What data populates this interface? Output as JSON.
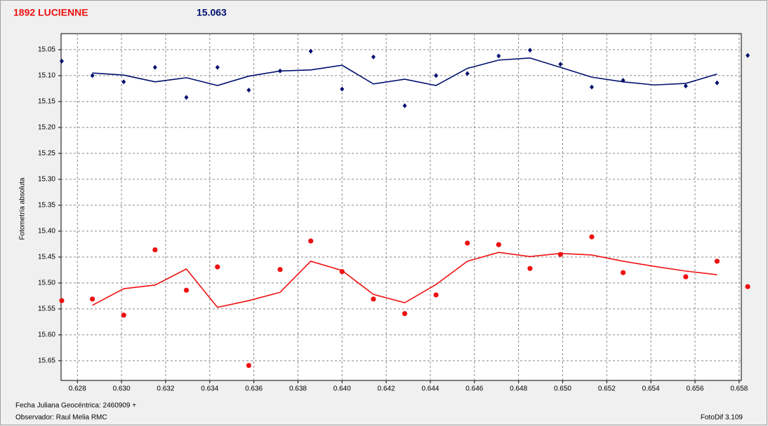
{
  "chart_data": {
    "type": "scatter",
    "title": "1892 LUCIENNE",
    "annotation": "15.063",
    "ylabel": "Fotometría absoluta",
    "inverted_y": true,
    "grid": true,
    "xlim": [
      0.62726,
      0.6581
    ],
    "ylim": [
      15.019,
      15.688
    ],
    "xticks": [
      0.628,
      {
        "value": 0.63,
        "label": "0.630"
      },
      0.632,
      0.634,
      0.636,
      0.638,
      {
        "value": 0.64,
        "label": "0.640"
      },
      0.642,
      0.644,
      0.646,
      0.648,
      {
        "value": 0.65,
        "label": "0.650"
      },
      0.652,
      0.654,
      0.656,
      0.658
    ],
    "yticks": [
      15.05,
      {
        "value": 15.1,
        "label": "15.10"
      },
      15.15,
      {
        "value": 15.2,
        "label": "15.20"
      },
      15.25,
      {
        "value": 15.3,
        "label": "15.30"
      },
      15.35,
      {
        "value": 15.4,
        "label": "15.40"
      },
      15.45,
      {
        "value": 15.5,
        "label": "15.50"
      },
      15.55,
      {
        "value": 15.6,
        "label": "15.60"
      },
      15.65
    ],
    "series": [
      {
        "style": "points",
        "marker": "diamond",
        "color": "#00106e",
        "x": [
          0.62729,
          0.62868,
          0.6301,
          0.63152,
          0.63294,
          0.63435,
          0.63577,
          0.63719,
          0.63858,
          0.64,
          0.64142,
          0.64284,
          0.64426,
          0.64568,
          0.6471,
          0.64852,
          0.6499,
          0.65132,
          0.65274,
          0.65558,
          0.657,
          0.65839
        ],
        "values": [
          15.072,
          15.1,
          15.112,
          15.084,
          15.142,
          15.084,
          15.128,
          15.091,
          15.053,
          15.126,
          15.064,
          15.158,
          15.1,
          15.096,
          15.062,
          15.051,
          15.078,
          15.122,
          15.109,
          15.12,
          15.114,
          15.061
        ]
      },
      {
        "style": "line",
        "color": "#00106e",
        "x": [
          0.62868,
          0.6301,
          0.63152,
          0.63294,
          0.63435,
          0.63577,
          0.63719,
          0.63858,
          0.64,
          0.64142,
          0.64284,
          0.64426,
          0.64568,
          0.6471,
          0.64852,
          0.6499,
          0.65132,
          0.65274,
          0.65416,
          0.65558,
          0.657
        ],
        "values": [
          15.095,
          15.099,
          15.112,
          15.104,
          15.119,
          15.101,
          15.091,
          15.089,
          15.08,
          15.116,
          15.107,
          15.119,
          15.086,
          15.07,
          15.066,
          15.084,
          15.103,
          15.112,
          15.118,
          15.115,
          15.097
        ]
      },
      {
        "style": "points",
        "marker": "circle",
        "color": "#ee1111",
        "x": [
          0.62729,
          0.62868,
          0.6301,
          0.63152,
          0.63294,
          0.63435,
          0.63577,
          0.63719,
          0.63858,
          0.64,
          0.64142,
          0.64284,
          0.64426,
          0.64568,
          0.6471,
          0.64852,
          0.6499,
          0.65132,
          0.65274,
          0.65558,
          0.657,
          0.65839
        ],
        "values": [
          15.534,
          15.531,
          15.562,
          15.436,
          15.514,
          15.469,
          15.659,
          15.474,
          15.419,
          15.478,
          15.531,
          15.559,
          15.523,
          15.423,
          15.426,
          15.472,
          15.445,
          15.411,
          15.48,
          15.488,
          15.458,
          15.507
        ]
      },
      {
        "style": "line",
        "color": "#ee1111",
        "x": [
          0.62868,
          0.6301,
          0.63152,
          0.63294,
          0.63435,
          0.63577,
          0.63719,
          0.63858,
          0.64,
          0.64142,
          0.64284,
          0.64426,
          0.64568,
          0.6471,
          0.64852,
          0.6499,
          0.65132,
          0.65274,
          0.65416,
          0.65558,
          0.657
        ],
        "values": [
          15.543,
          15.511,
          15.504,
          15.473,
          15.547,
          15.534,
          15.518,
          15.458,
          15.476,
          15.522,
          15.538,
          15.503,
          15.458,
          15.441,
          15.449,
          15.443,
          15.446,
          15.458,
          15.468,
          15.477,
          15.484
        ]
      }
    ]
  },
  "footer": {
    "date": "Fecha Juliana Geocéntrica: 2460909 +",
    "observer": "Observador: Raul Melia RMC",
    "software": "FotoDif 3.109"
  }
}
